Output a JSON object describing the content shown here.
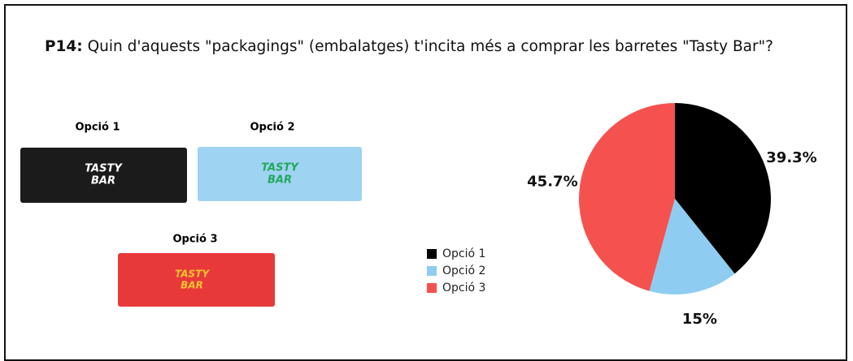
{
  "question": {
    "prefix": "P14:",
    "text": "Quin d'aquests \"packagings\" (embalatges) t'incita més a comprar les barretes \"Tasty Bar\"?"
  },
  "packagings": [
    {
      "label": "Opció 1",
      "brand": [
        "TASTY",
        "BAR"
      ]
    },
    {
      "label": "Opció 2",
      "brand": [
        "TASTY",
        "BAR"
      ]
    },
    {
      "label": "Opció 3",
      "brand": [
        "TASTY",
        "BAR"
      ]
    }
  ],
  "chart_data": {
    "type": "pie",
    "categories": [
      "Opció 1",
      "Opció 2",
      "Opció 3"
    ],
    "values": [
      39.3,
      15,
      45.7
    ],
    "value_labels": [
      "39.3%",
      "15%",
      "45.7%"
    ],
    "colors": [
      "#000000",
      "#8ecdf1",
      "#f5524f"
    ],
    "legend": "left"
  }
}
